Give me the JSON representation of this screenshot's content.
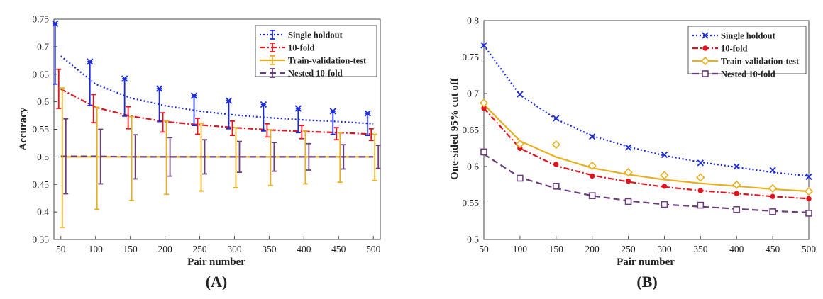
{
  "chart_data": [
    {
      "panel": "(A)",
      "type": "line",
      "xlabel": "Pair number",
      "ylabel": "Accuracy",
      "xlim": [
        40,
        510
      ],
      "ylim": [
        0.35,
        0.75
      ],
      "xticks": [
        50,
        100,
        150,
        200,
        250,
        300,
        350,
        400,
        450,
        500
      ],
      "yticks": [
        0.35,
        0.4,
        0.45,
        0.5,
        0.55,
        0.6,
        0.65,
        0.7,
        0.75
      ],
      "grid": false,
      "legend_position": "top-right",
      "x": [
        50,
        100,
        150,
        200,
        250,
        300,
        350,
        400,
        450,
        500
      ],
      "series": [
        {
          "name": "Single holdout",
          "color": "#1a2ad8",
          "style": "dotted",
          "marker": "x-errorbar",
          "fit": [
            0.683,
            0.632,
            0.607,
            0.593,
            0.583,
            0.576,
            0.571,
            0.567,
            0.564,
            0.56
          ],
          "upper": [
            0.742,
            0.673,
            0.642,
            0.624,
            0.611,
            0.602,
            0.595,
            0.588,
            0.583,
            0.579
          ],
          "lower": [
            0.632,
            0.593,
            0.574,
            0.564,
            0.557,
            0.551,
            0.547,
            0.544,
            0.541,
            0.539
          ]
        },
        {
          "name": "10-fold",
          "color": "#e0141e",
          "style": "dashdot",
          "marker": "errorbar",
          "fit": [
            0.623,
            0.59,
            0.574,
            0.564,
            0.558,
            0.553,
            0.549,
            0.546,
            0.544,
            0.541
          ],
          "upper": [
            0.659,
            0.613,
            0.591,
            0.58,
            0.57,
            0.565,
            0.56,
            0.557,
            0.553,
            0.551
          ],
          "lower": [
            0.588,
            0.562,
            0.551,
            0.545,
            0.541,
            0.539,
            0.536,
            0.533,
            0.531,
            0.53
          ]
        },
        {
          "name": "Train-validation-test",
          "color": "#e8b020",
          "style": "solid",
          "marker": "errorbar",
          "fit": [
            0.5,
            0.5,
            0.5,
            0.5,
            0.5,
            0.5,
            0.5,
            0.5,
            0.5,
            0.5
          ],
          "mean": [
            0.625,
            0.59,
            0.573,
            0.565,
            0.561,
            0.553,
            0.549,
            0.547,
            0.544,
            0.541
          ],
          "upper": [
            0.625,
            0.59,
            0.573,
            0.565,
            0.561,
            0.553,
            0.549,
            0.547,
            0.544,
            0.541
          ],
          "lower": [
            0.372,
            0.405,
            0.421,
            0.432,
            0.438,
            0.444,
            0.448,
            0.451,
            0.454,
            0.457
          ]
        },
        {
          "name": "Nested 10-fold",
          "color": "#6a3d7c",
          "style": "dashed",
          "marker": "errorbar",
          "fit": [
            0.501,
            0.501,
            0.5,
            0.5,
            0.5,
            0.5,
            0.5,
            0.5,
            0.5,
            0.5
          ],
          "upper": [
            0.569,
            0.55,
            0.54,
            0.535,
            0.531,
            0.528,
            0.526,
            0.524,
            0.522,
            0.521
          ],
          "lower": [
            0.433,
            0.451,
            0.46,
            0.465,
            0.469,
            0.472,
            0.474,
            0.476,
            0.478,
            0.479
          ]
        }
      ]
    },
    {
      "panel": "(B)",
      "type": "line",
      "xlabel": "Pair number",
      "ylabel": "One-sided 95% cut off",
      "xlim": [
        50,
        500
      ],
      "ylim": [
        0.5,
        0.8
      ],
      "xticks": [
        50,
        100,
        150,
        200,
        250,
        300,
        350,
        400,
        450,
        500
      ],
      "yticks": [
        0.5,
        0.55,
        0.6,
        0.65,
        0.7,
        0.75,
        0.8
      ],
      "grid": false,
      "legend_position": "top-right",
      "x": [
        50,
        100,
        150,
        200,
        250,
        300,
        350,
        400,
        450,
        500
      ],
      "series": [
        {
          "name": "Single holdout",
          "color": "#1a2ad8",
          "style": "dotted",
          "marker": "x",
          "values": [
            0.766,
            0.699,
            0.666,
            0.641,
            0.626,
            0.616,
            0.605,
            0.6,
            0.595,
            0.586
          ],
          "fit": [
            0.766,
            0.698,
            0.665,
            0.642,
            0.627,
            0.615,
            0.606,
            0.599,
            0.592,
            0.587
          ]
        },
        {
          "name": "10-fold",
          "color": "#e0141e",
          "style": "dashdot",
          "marker": "dot",
          "values": [
            0.68,
            0.625,
            0.603,
            0.587,
            0.58,
            0.573,
            0.567,
            0.563,
            0.559,
            0.556
          ],
          "fit": [
            0.68,
            0.625,
            0.601,
            0.588,
            0.579,
            0.572,
            0.567,
            0.563,
            0.559,
            0.556
          ]
        },
        {
          "name": "Train-validation-test",
          "color": "#e8b020",
          "style": "solid",
          "marker": "diamond",
          "values": [
            0.687,
            0.631,
            0.63,
            0.601,
            0.592,
            0.588,
            0.585,
            0.575,
            0.57,
            0.566
          ],
          "fit": [
            0.685,
            0.635,
            0.613,
            0.598,
            0.589,
            0.582,
            0.577,
            0.573,
            0.569,
            0.566
          ]
        },
        {
          "name": "Nested 10-fold",
          "color": "#6a3d7c",
          "style": "dashed",
          "marker": "square",
          "values": [
            0.62,
            0.584,
            0.573,
            0.56,
            0.552,
            0.548,
            0.547,
            0.541,
            0.538,
            0.536
          ],
          "fit": [
            0.617,
            0.585,
            0.57,
            0.56,
            0.553,
            0.548,
            0.545,
            0.542,
            0.539,
            0.537
          ]
        }
      ]
    }
  ]
}
